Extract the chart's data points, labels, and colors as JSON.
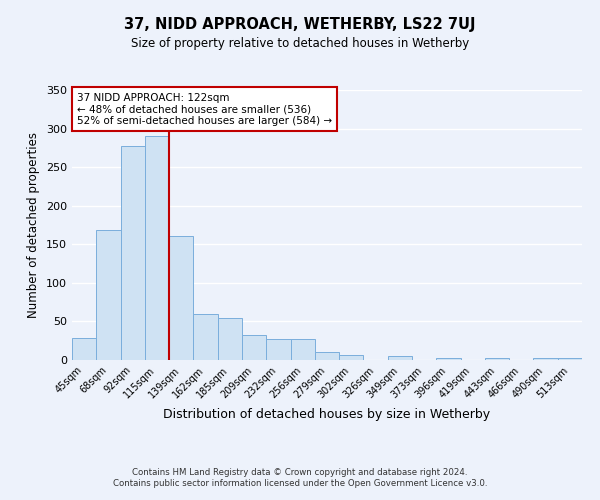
{
  "title": "37, NIDD APPROACH, WETHERBY, LS22 7UJ",
  "subtitle": "Size of property relative to detached houses in Wetherby",
  "xlabel": "Distribution of detached houses by size in Wetherby",
  "ylabel": "Number of detached properties",
  "bar_labels": [
    "45sqm",
    "68sqm",
    "92sqm",
    "115sqm",
    "139sqm",
    "162sqm",
    "185sqm",
    "209sqm",
    "232sqm",
    "256sqm",
    "279sqm",
    "302sqm",
    "326sqm",
    "349sqm",
    "373sqm",
    "396sqm",
    "419sqm",
    "443sqm",
    "466sqm",
    "490sqm",
    "513sqm"
  ],
  "bar_values": [
    28,
    168,
    277,
    290,
    161,
    59,
    55,
    33,
    27,
    27,
    10,
    6,
    0,
    5,
    0,
    2,
    0,
    3,
    0,
    3,
    3
  ],
  "bar_color": "#cfe2f3",
  "bar_edge_color": "#7aaedc",
  "vline_color": "#c00000",
  "annotation_title": "37 NIDD APPROACH: 122sqm",
  "annotation_line2": "← 48% of detached houses are smaller (536)",
  "annotation_line3": "52% of semi-detached houses are larger (584) →",
  "annotation_box_color": "#ffffff",
  "annotation_border_color": "#c00000",
  "ylim": [
    0,
    350
  ],
  "yticks": [
    0,
    50,
    100,
    150,
    200,
    250,
    300,
    350
  ],
  "background_color": "#edf2fb",
  "grid_color": "#ffffff",
  "footer_line1": "Contains HM Land Registry data © Crown copyright and database right 2024.",
  "footer_line2": "Contains public sector information licensed under the Open Government Licence v3.0."
}
